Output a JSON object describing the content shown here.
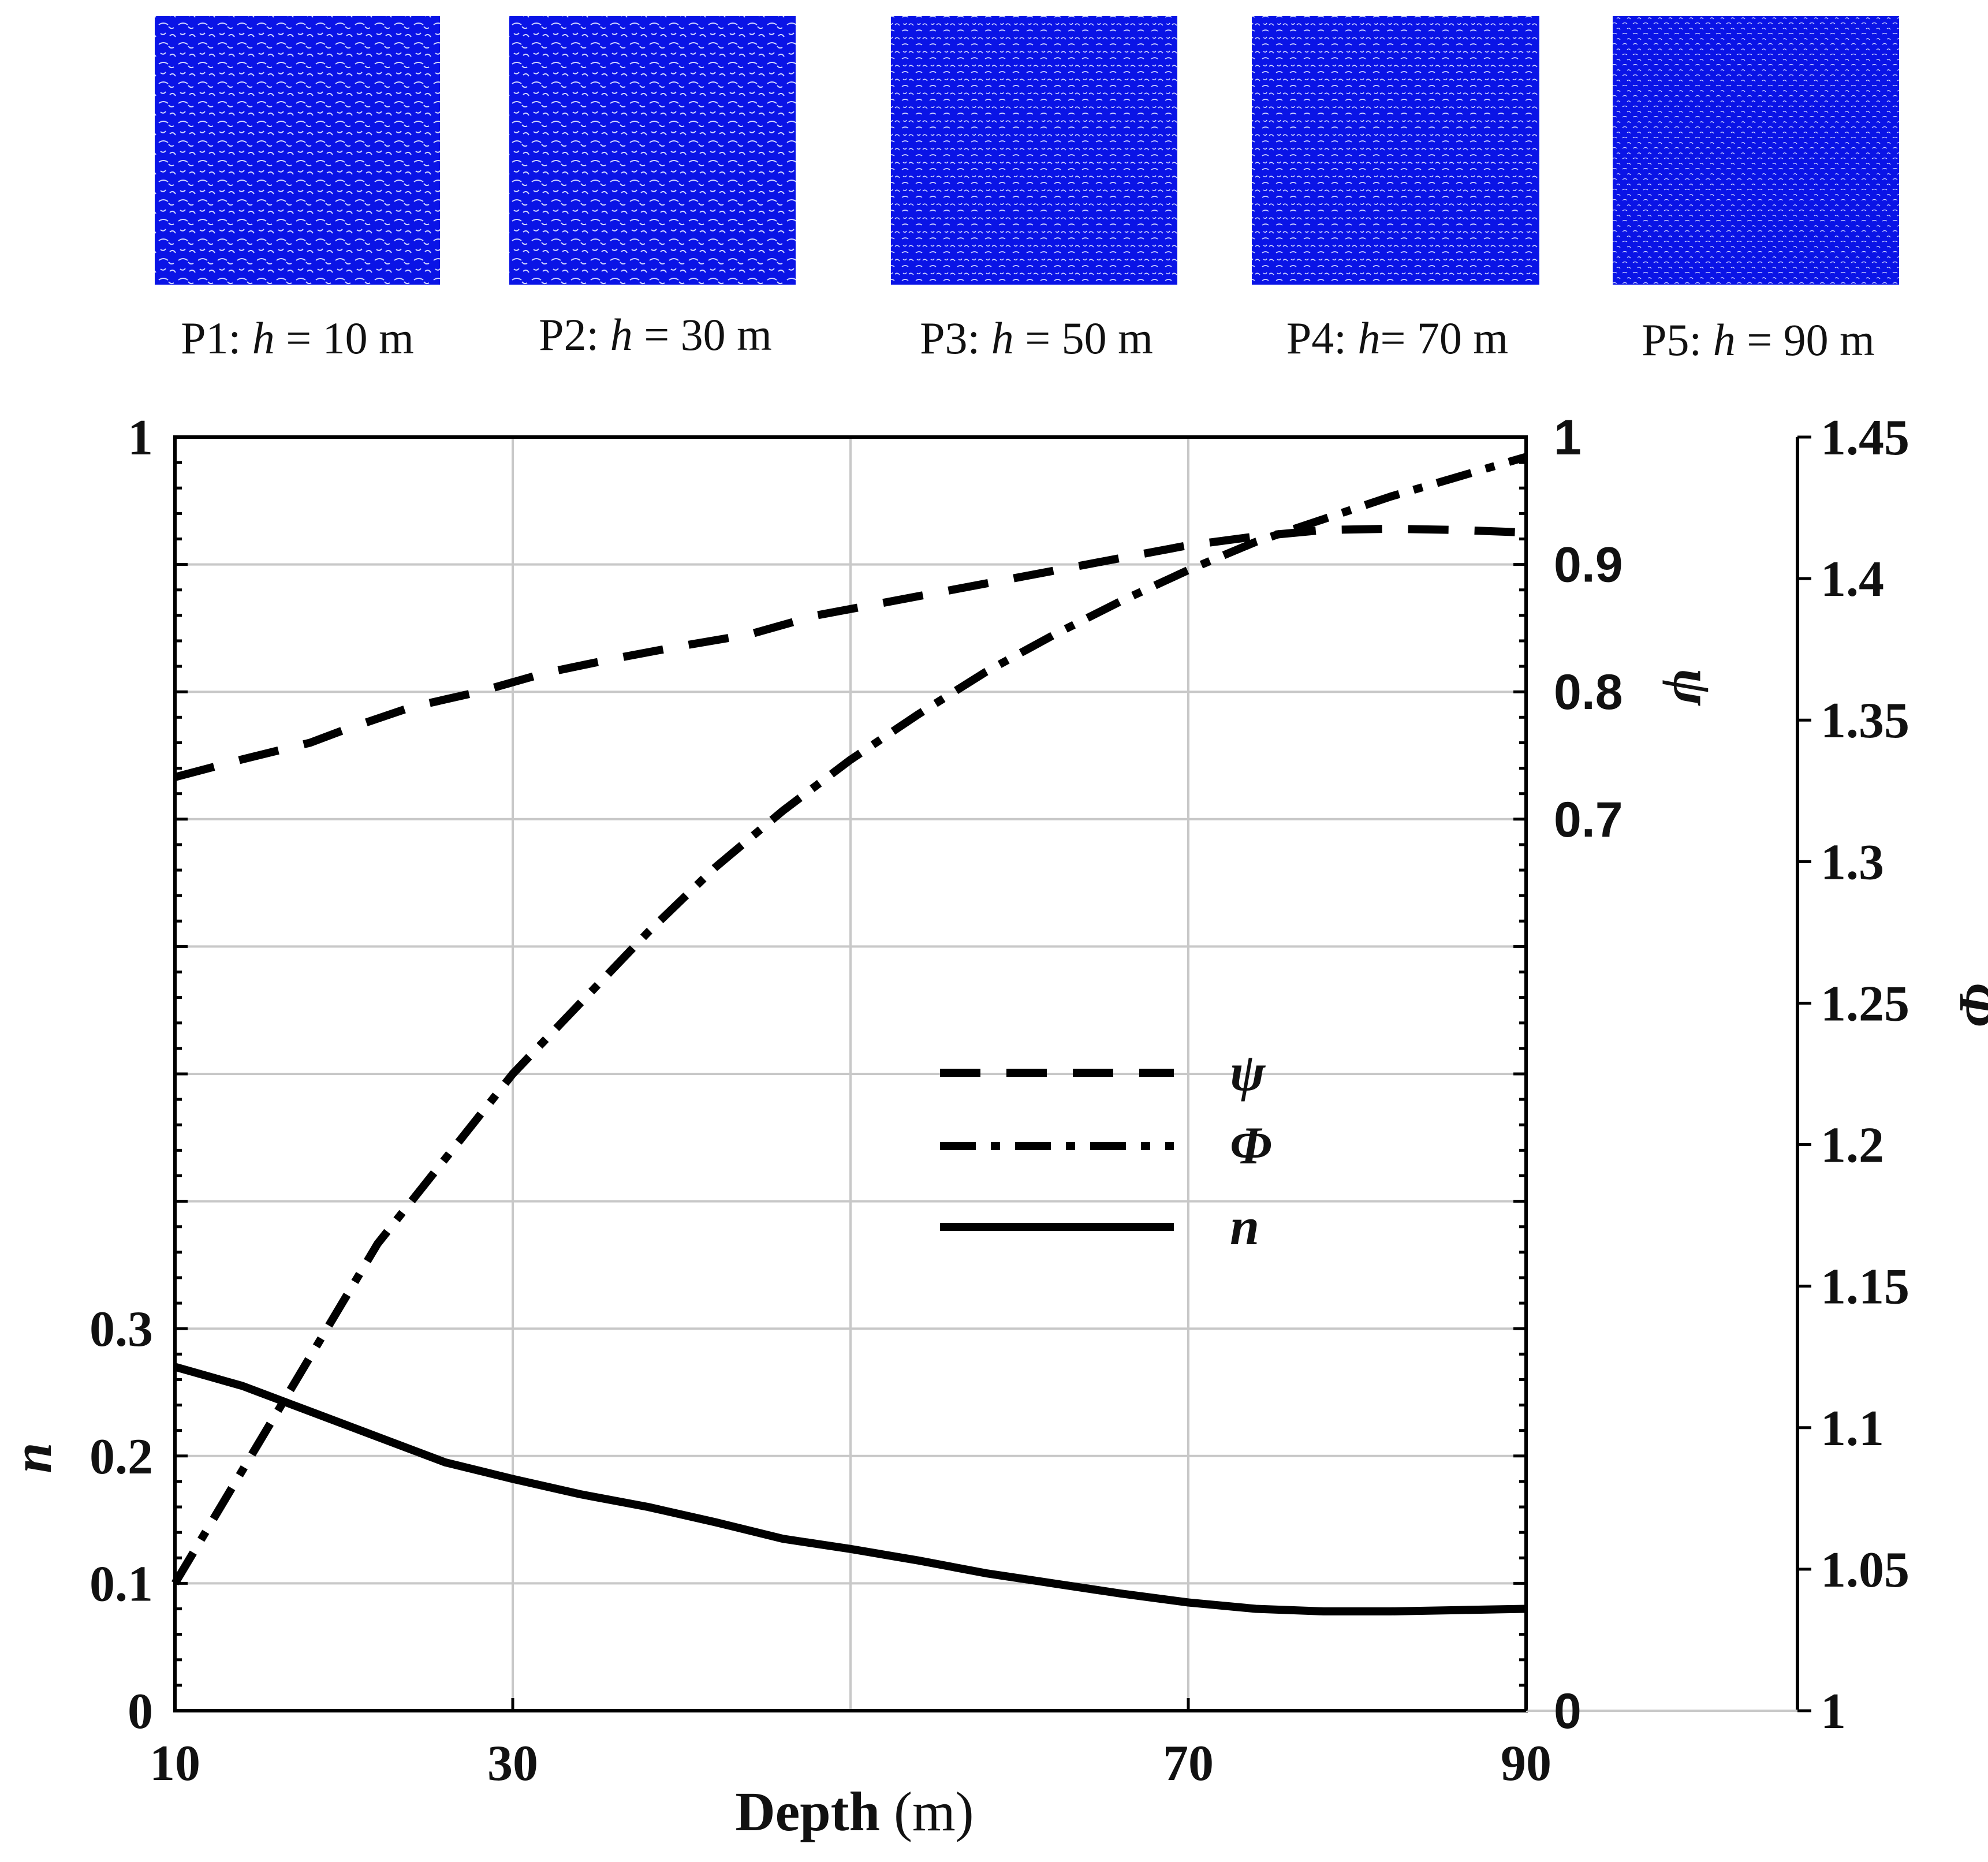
{
  "panels": [
    {
      "id": "P1",
      "prefix": "P1: ",
      "var": "h",
      "rest": " = 10 m",
      "color": "#0a14e6"
    },
    {
      "id": "P2",
      "prefix": "P2: ",
      "var": "h",
      "rest": " = 30 m",
      "color": "#0a14e6"
    },
    {
      "id": "P3",
      "prefix": "P3: ",
      "var": "h",
      "rest": " = 50 m",
      "color": "#0a14e6"
    },
    {
      "id": "P4",
      "prefix": "P4: ",
      "var": "h",
      "rest": "= 70 m",
      "color": "#0a14e6"
    },
    {
      "id": "P5",
      "prefix": "P5: ",
      "var": "h",
      "rest": " = 90 m",
      "color": "#0a14e6"
    }
  ],
  "chart_data": {
    "type": "line",
    "xlabel_bold": "Depth",
    "xlabel_unit": " (m)",
    "xlim": [
      10,
      90
    ],
    "xticks": [
      "10",
      "30",
      "70",
      "90"
    ],
    "xtick_values": [
      10,
      30,
      70,
      90
    ],
    "grid": true,
    "y_left": {
      "label": "n",
      "lim": [
        0,
        1
      ],
      "ticks": [
        "0",
        "0.1",
        "0.2",
        "0.3",
        "1"
      ],
      "tick_values": [
        0,
        0.1,
        0.2,
        0.3,
        1
      ]
    },
    "y_psi": {
      "label": "ψ",
      "lim": [
        0,
        1
      ],
      "ticks": [
        "0",
        "0.7",
        "0.8",
        "0.9",
        "1"
      ],
      "tick_values": [
        0,
        0.7,
        0.8,
        0.9,
        1
      ]
    },
    "y_phi": {
      "label": "Φ",
      "lim": [
        1,
        1.45
      ],
      "ticks": [
        "1",
        "1.05",
        "1.1",
        "1.15",
        "1.2",
        "1.25",
        "1.3",
        "1.35",
        "1.4",
        "1.45"
      ],
      "tick_values": [
        1,
        1.05,
        1.1,
        1.15,
        1.2,
        1.25,
        1.3,
        1.35,
        1.4,
        1.45
      ]
    },
    "legend": {
      "placement": "center-right",
      "entries": [
        "ψ",
        "Φ",
        "n"
      ]
    },
    "series": [
      {
        "name": "ψ",
        "axis": "psi",
        "style": "dashed",
        "x": [
          10,
          14,
          18,
          20,
          24,
          28,
          32,
          36,
          40,
          44,
          48,
          52,
          56,
          60,
          64,
          68,
          70,
          74,
          78,
          82,
          86,
          90
        ],
        "values": [
          0.733,
          0.747,
          0.76,
          0.77,
          0.788,
          0.8,
          0.815,
          0.826,
          0.836,
          0.845,
          0.86,
          0.87,
          0.88,
          0.89,
          0.9,
          0.91,
          0.915,
          0.922,
          0.927,
          0.928,
          0.927,
          0.925
        ]
      },
      {
        "name": "Φ",
        "axis": "phi",
        "style": "dashdot",
        "x": [
          10,
          12,
          14,
          16,
          18,
          20,
          22,
          26,
          30,
          34,
          38,
          42,
          46,
          50,
          54,
          58,
          62,
          66,
          70,
          74,
          78,
          82,
          86,
          90
        ],
        "values": [
          1.045,
          1.065,
          1.085,
          1.105,
          1.125,
          1.145,
          1.165,
          1.195,
          1.225,
          1.25,
          1.275,
          1.298,
          1.318,
          1.336,
          1.352,
          1.367,
          1.38,
          1.392,
          1.403,
          1.413,
          1.421,
          1.429,
          1.436,
          1.443
        ]
      },
      {
        "name": "n",
        "axis": "left",
        "style": "solid",
        "x": [
          10,
          14,
          18,
          22,
          26,
          30,
          34,
          38,
          42,
          46,
          50,
          54,
          58,
          62,
          66,
          70,
          74,
          78,
          82,
          86,
          90
        ],
        "values": [
          0.27,
          0.255,
          0.235,
          0.215,
          0.195,
          0.182,
          0.17,
          0.16,
          0.148,
          0.135,
          0.127,
          0.118,
          0.108,
          0.1,
          0.092,
          0.085,
          0.08,
          0.078,
          0.078,
          0.079,
          0.08
        ]
      }
    ]
  }
}
